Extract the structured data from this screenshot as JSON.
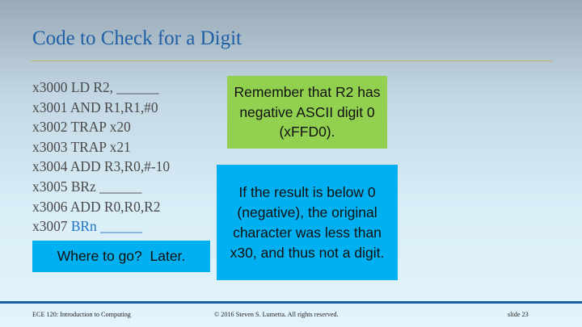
{
  "slide": {
    "title": "Code to Check for a Digit",
    "code_lines": [
      "x3000 LD R2, ______",
      "x3001 AND R1,R1,#0",
      "x3002 TRAP x20",
      "x3003 TRAP x21",
      "x3004 ADD R3,R0,#-10",
      "x3005 BRz ______",
      "x3006 ADD R0,R0,R2"
    ],
    "code_last": {
      "addr": "x3007 ",
      "instr": "BRn ______"
    },
    "note_green": "Remember that R2 has negative ASCII digit 0 (xFFD0).",
    "note_blue": "If the result is below 0 (negative), the original character was less than x30, and thus not a digit.",
    "note_where": "Where to go?  Later."
  },
  "footer": {
    "course": "ECE 120: Introduction to Computing",
    "copyright": "© 2016 Steven S. Lumetta.  All rights reserved.",
    "slide_number": "slide 23"
  },
  "colors": {
    "title": "#1f5fa6",
    "green_box": "#92d050",
    "blue_box": "#00b0f0",
    "footer_rule": "#1f5fa6",
    "highlight": "#1e73c6"
  }
}
